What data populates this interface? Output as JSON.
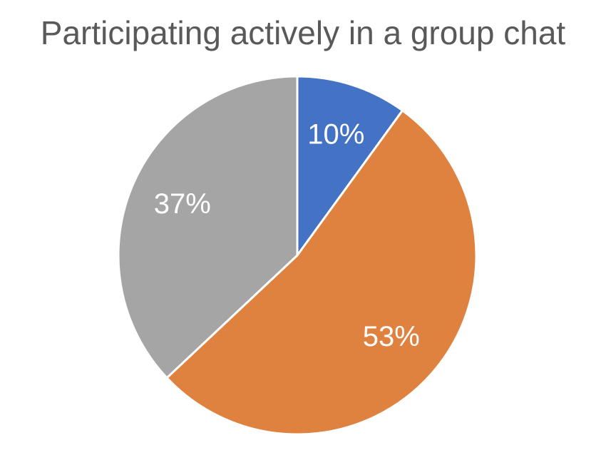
{
  "chart_data": {
    "type": "pie",
    "title": "Participating actively in a group chat",
    "values": [
      10,
      53,
      37
    ],
    "value_labels": [
      "10%",
      "53%",
      "37%"
    ],
    "colors": [
      "#4472c4",
      "#e0823f",
      "#a5a5a5"
    ]
  }
}
